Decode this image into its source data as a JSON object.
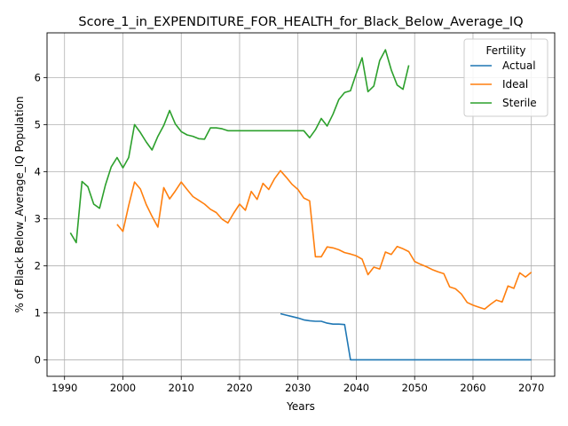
{
  "chart_data": {
    "type": "line",
    "title": "Score_1_in_EXPENDITURE_FOR_HEALTH_for_Black_Below_Average_IQ",
    "xlabel": "Years",
    "ylabel": "% of Black Below_Average_IQ Population",
    "xlim": [
      1987,
      2074
    ],
    "ylim": [
      -0.35,
      6.95
    ],
    "xticks": [
      1990,
      2000,
      2010,
      2020,
      2030,
      2040,
      2050,
      2060,
      2070
    ],
    "yticks": [
      0,
      1,
      2,
      3,
      4,
      5,
      6
    ],
    "grid": true,
    "legend": {
      "title": "Fertility",
      "placement": "top-right"
    },
    "series": [
      {
        "name": "Actual",
        "color": "#1f77b4",
        "points": [
          [
            2027,
            0.98
          ],
          [
            2028,
            0.95
          ],
          [
            2029,
            0.92
          ],
          [
            2030,
            0.89
          ],
          [
            2031,
            0.85
          ],
          [
            2032,
            0.83
          ],
          [
            2033,
            0.82
          ],
          [
            2034,
            0.82
          ],
          [
            2035,
            0.78
          ],
          [
            2036,
            0.76
          ],
          [
            2037,
            0.76
          ],
          [
            2038,
            0.75
          ],
          [
            2039,
            0.0
          ],
          [
            2040,
            0.0
          ],
          [
            2045,
            0.0
          ],
          [
            2050,
            0.0
          ],
          [
            2055,
            0.0
          ],
          [
            2060,
            0.0
          ],
          [
            2065,
            0.0
          ],
          [
            2070,
            0.0
          ]
        ]
      },
      {
        "name": "Ideal",
        "color": "#ff7f0e",
        "points": [
          [
            1999,
            2.88
          ],
          [
            2000,
            2.73
          ],
          [
            2001,
            3.28
          ],
          [
            2002,
            3.78
          ],
          [
            2003,
            3.63
          ],
          [
            2004,
            3.3
          ],
          [
            2005,
            3.05
          ],
          [
            2006,
            2.82
          ],
          [
            2007,
            3.66
          ],
          [
            2008,
            3.42
          ],
          [
            2009,
            3.59
          ],
          [
            2010,
            3.78
          ],
          [
            2011,
            3.62
          ],
          [
            2012,
            3.47
          ],
          [
            2013,
            3.39
          ],
          [
            2014,
            3.31
          ],
          [
            2015,
            3.2
          ],
          [
            2016,
            3.13
          ],
          [
            2017,
            2.99
          ],
          [
            2018,
            2.91
          ],
          [
            2019,
            3.12
          ],
          [
            2020,
            3.31
          ],
          [
            2021,
            3.18
          ],
          [
            2022,
            3.58
          ],
          [
            2023,
            3.41
          ],
          [
            2024,
            3.75
          ],
          [
            2025,
            3.62
          ],
          [
            2026,
            3.85
          ],
          [
            2027,
            4.02
          ],
          [
            2028,
            3.88
          ],
          [
            2029,
            3.73
          ],
          [
            2030,
            3.62
          ],
          [
            2031,
            3.44
          ],
          [
            2032,
            3.38
          ],
          [
            2033,
            2.19
          ],
          [
            2034,
            2.19
          ],
          [
            2035,
            2.4
          ],
          [
            2036,
            2.38
          ],
          [
            2037,
            2.34
          ],
          [
            2038,
            2.28
          ],
          [
            2039,
            2.25
          ],
          [
            2040,
            2.21
          ],
          [
            2041,
            2.14
          ],
          [
            2042,
            1.81
          ],
          [
            2043,
            1.97
          ],
          [
            2044,
            1.93
          ],
          [
            2045,
            2.29
          ],
          [
            2046,
            2.24
          ],
          [
            2047,
            2.41
          ],
          [
            2048,
            2.36
          ],
          [
            2049,
            2.3
          ],
          [
            2050,
            2.09
          ],
          [
            2051,
            2.03
          ],
          [
            2052,
            1.98
          ],
          [
            2053,
            1.92
          ],
          [
            2054,
            1.87
          ],
          [
            2055,
            1.83
          ],
          [
            2056,
            1.55
          ],
          [
            2057,
            1.51
          ],
          [
            2058,
            1.4
          ],
          [
            2059,
            1.22
          ],
          [
            2060,
            1.16
          ],
          [
            2061,
            1.12
          ],
          [
            2062,
            1.08
          ],
          [
            2063,
            1.18
          ],
          [
            2064,
            1.27
          ],
          [
            2065,
            1.23
          ],
          [
            2066,
            1.57
          ],
          [
            2067,
            1.52
          ],
          [
            2068,
            1.85
          ],
          [
            2069,
            1.76
          ],
          [
            2070,
            1.86
          ]
        ]
      },
      {
        "name": "Sterile",
        "color": "#2ca02c",
        "points": [
          [
            1991,
            2.7
          ],
          [
            1992,
            2.49
          ],
          [
            1993,
            3.79
          ],
          [
            1994,
            3.68
          ],
          [
            1995,
            3.31
          ],
          [
            1996,
            3.22
          ],
          [
            1997,
            3.71
          ],
          [
            1998,
            4.1
          ],
          [
            1999,
            4.3
          ],
          [
            2000,
            4.08
          ],
          [
            2001,
            4.3
          ],
          [
            2002,
            5.0
          ],
          [
            2003,
            4.83
          ],
          [
            2004,
            4.63
          ],
          [
            2005,
            4.46
          ],
          [
            2006,
            4.75
          ],
          [
            2007,
            4.98
          ],
          [
            2008,
            5.3
          ],
          [
            2009,
            5.01
          ],
          [
            2010,
            4.85
          ],
          [
            2011,
            4.78
          ],
          [
            2012,
            4.75
          ],
          [
            2013,
            4.7
          ],
          [
            2014,
            4.69
          ],
          [
            2015,
            4.93
          ],
          [
            2016,
            4.93
          ],
          [
            2017,
            4.91
          ],
          [
            2018,
            4.87
          ],
          [
            2019,
            4.87
          ],
          [
            2020,
            4.87
          ],
          [
            2025,
            4.87
          ],
          [
            2030,
            4.87
          ],
          [
            2031,
            4.87
          ],
          [
            2032,
            4.72
          ],
          [
            2033,
            4.89
          ],
          [
            2034,
            5.13
          ],
          [
            2035,
            4.97
          ],
          [
            2036,
            5.22
          ],
          [
            2037,
            5.53
          ],
          [
            2038,
            5.68
          ],
          [
            2039,
            5.72
          ],
          [
            2040,
            6.09
          ],
          [
            2041,
            6.42
          ],
          [
            2042,
            5.7
          ],
          [
            2043,
            5.82
          ],
          [
            2044,
            6.36
          ],
          [
            2045,
            6.59
          ],
          [
            2046,
            6.16
          ],
          [
            2047,
            5.84
          ],
          [
            2048,
            5.75
          ],
          [
            2049,
            6.26
          ]
        ]
      }
    ]
  }
}
